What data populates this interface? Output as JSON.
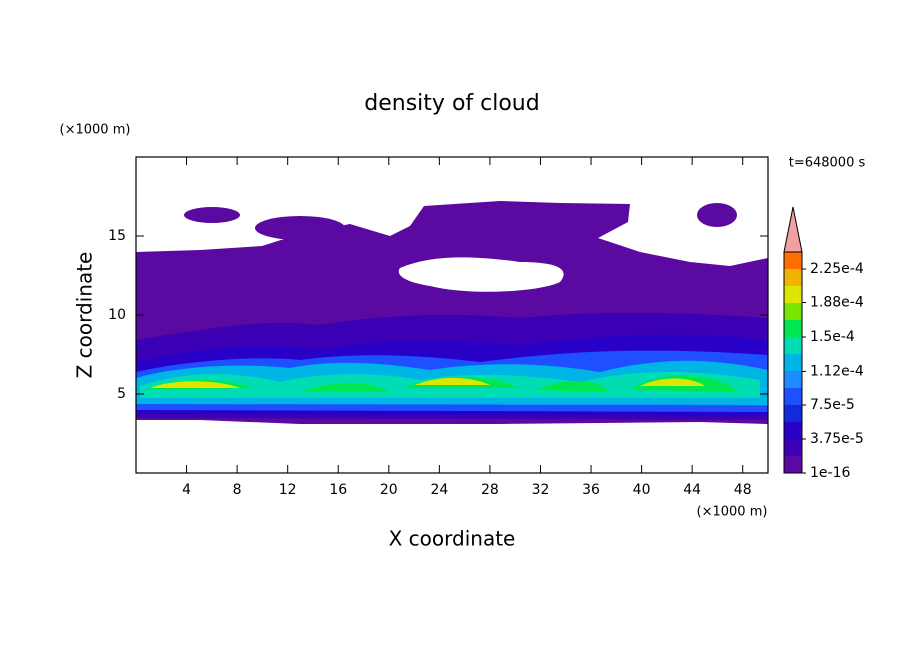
{
  "chart_data": {
    "type": "contour",
    "title": "density of cloud",
    "x_label": "X coordinate",
    "y_label": "Z coordinate",
    "x_unit": "(×1000 m)",
    "y_unit": "(×1000 m)",
    "time_label": "t=648000 s",
    "xlim": [
      0,
      50
    ],
    "xticks": [
      4,
      8,
      12,
      16,
      20,
      24,
      28,
      32,
      36,
      40,
      44,
      48
    ],
    "ylim": [
      0,
      20
    ],
    "yticks": [
      5,
      10,
      15
    ],
    "clim": [
      1e-16,
      0.00024375
    ],
    "cticks": [
      {
        "value": 1e-16,
        "label": "1e-16"
      },
      {
        "value": 3.75e-05,
        "label": "3.75e-5"
      },
      {
        "value": 7.5e-05,
        "label": "7.5e-5"
      },
      {
        "value": 0.000112,
        "label": "1.12e-4"
      },
      {
        "value": 0.00015,
        "label": "1.5e-4"
      },
      {
        "value": 0.000188,
        "label": "1.88e-4"
      },
      {
        "value": 0.000225,
        "label": "2.25e-4"
      }
    ],
    "colors": [
      "#5a0aa0",
      "#3c00b4",
      "#2800c8",
      "#1428dc",
      "#1e50ff",
      "#1e8cff",
      "#00b4e6",
      "#00dcb4",
      "#00e650",
      "#78e600",
      "#dce600",
      "#f0b400",
      "#ff6e00"
    ],
    "over_color": "#f0a0a0"
  }
}
